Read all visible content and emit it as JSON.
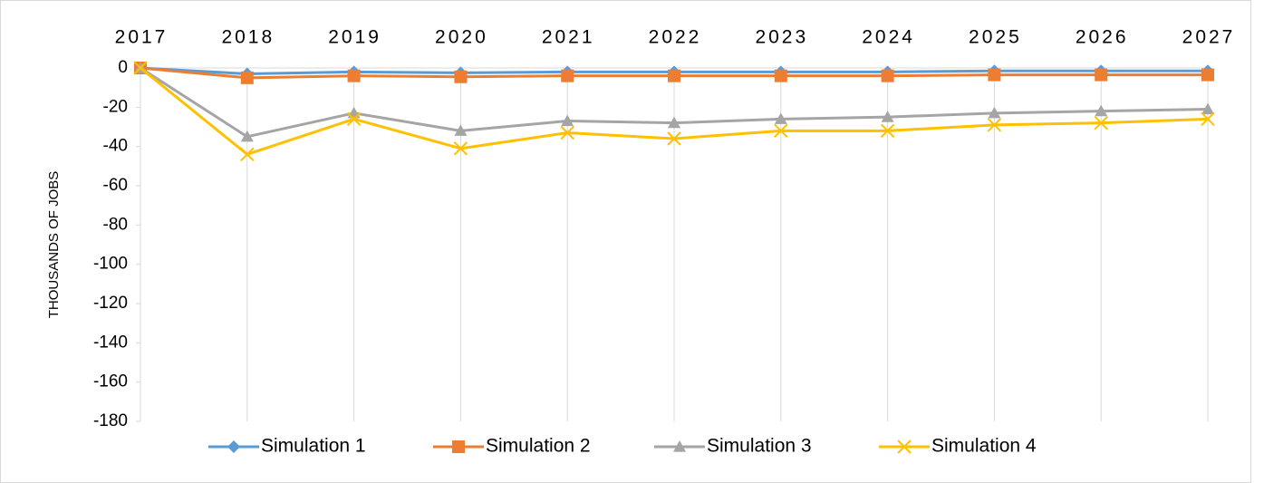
{
  "chart_data": {
    "type": "line",
    "y_label": "THOUSANDS OF JOBS",
    "categories": [
      "2017",
      "2018",
      "2019",
      "2020",
      "2021",
      "2022",
      "2023",
      "2024",
      "2025",
      "2026",
      "2027"
    ],
    "series": [
      {
        "name": "Simulation 1",
        "color": "#5b9bd5",
        "marker": "diamond",
        "values": [
          0,
          -3,
          -2,
          -2.5,
          -2,
          -2,
          -2,
          -2,
          -1.5,
          -1.5,
          -1.5
        ]
      },
      {
        "name": "Simulation 2",
        "color": "#ed7d31",
        "marker": "square",
        "values": [
          0,
          -5,
          -4,
          -4.5,
          -4,
          -4,
          -4,
          -4,
          -3.5,
          -3.5,
          -3.5
        ]
      },
      {
        "name": "Simulation 3",
        "color": "#a5a5a5",
        "marker": "triangle",
        "values": [
          0,
          -35,
          -23,
          -32,
          -27,
          -28,
          -26,
          -25,
          -23,
          -22,
          -21
        ]
      },
      {
        "name": "Simulation 4",
        "color": "#ffc000",
        "marker": "x",
        "values": [
          0,
          -44,
          -26,
          -41,
          -33,
          -36,
          -32,
          -32,
          -29,
          -28,
          -26
        ]
      }
    ],
    "ylim": [
      -180,
      0
    ],
    "yticks": [
      0,
      -20,
      -40,
      -60,
      -80,
      -100,
      -120,
      -140,
      -160,
      -180
    ],
    "grid": true,
    "legend": "bottom"
  }
}
